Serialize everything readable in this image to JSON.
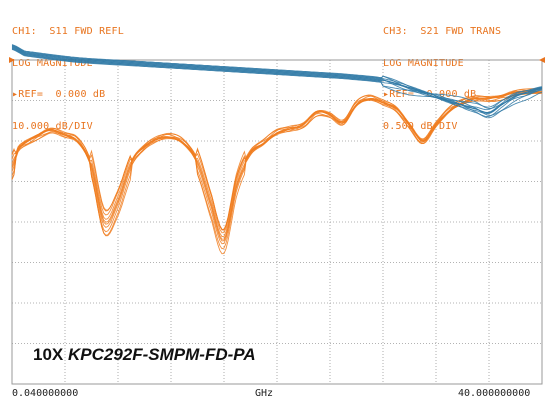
{
  "header_left": {
    "line1": "CH1:  S11 FWD REFL",
    "line2": "LOG MAGNITUDE",
    "line3": "REF=  0.000 dB",
    "line4": "10.000 dB/DIV"
  },
  "header_right": {
    "line1": "CH3:  S21 FWD TRANS",
    "line2": "LOG MAGNITUDE",
    "line3": "REF=  0.000 dB",
    "line4": "0.500 dB/DIV"
  },
  "caption": {
    "prefix": "10X ",
    "model": "KPC292F-SMPM-FD-PA"
  },
  "footer": {
    "start": "0.040000000",
    "unit": "GHz",
    "stop": "40.000000000"
  },
  "colors": {
    "s11": "#f07d1e",
    "s21": "#2f79a6",
    "grid": "#9a9a9a",
    "marker": "#e8741f"
  },
  "chart_data": {
    "type": "line",
    "x_range_ghz": [
      0.04,
      40.0
    ],
    "divisions": {
      "x": 10,
      "y": 8
    },
    "grid": true,
    "reference_level_db": 0,
    "series": [
      {
        "name": "S11",
        "scale_db_per_div": 10,
        "x": [
          0.04,
          0.5,
          1,
          2,
          3,
          4,
          5,
          6,
          7,
          8,
          9,
          10,
          11,
          12,
          13,
          14,
          15,
          16,
          17,
          18,
          19,
          20,
          21,
          22,
          23,
          24,
          25,
          26,
          27,
          28,
          29,
          30,
          31,
          32,
          33,
          34,
          35,
          36,
          37,
          38,
          39,
          40
        ],
        "values": [
          -26.5,
          -22,
          -20.5,
          -18.7,
          -17.3,
          -18.5,
          -20,
          -26,
          -40,
          -35,
          -25.5,
          -21.5,
          -19.5,
          -19,
          -20.5,
          -25,
          -35,
          -44,
          -30,
          -23,
          -20.5,
          -18,
          -17,
          -16,
          -13,
          -13.5,
          -15.5,
          -11,
          -9.5,
          -10.5,
          -12,
          -16,
          -20,
          -16,
          -12.5,
          -10.5,
          -9.5,
          -9.5,
          -9,
          -8,
          -7.8,
          -7.8
        ]
      },
      {
        "name": "S21",
        "scale_db_per_div": 0.5,
        "x": [
          0.04,
          1,
          5,
          10,
          15,
          20,
          25,
          28,
          30,
          32,
          34,
          35,
          36,
          37,
          38,
          39,
          40
        ],
        "values": [
          0.16,
          0.08,
          0.0,
          -0.05,
          -0.1,
          -0.15,
          -0.2,
          -0.25,
          -0.35,
          -0.45,
          -0.55,
          -0.6,
          -0.65,
          -0.55,
          -0.45,
          -0.4,
          -0.35
        ]
      }
    ]
  }
}
